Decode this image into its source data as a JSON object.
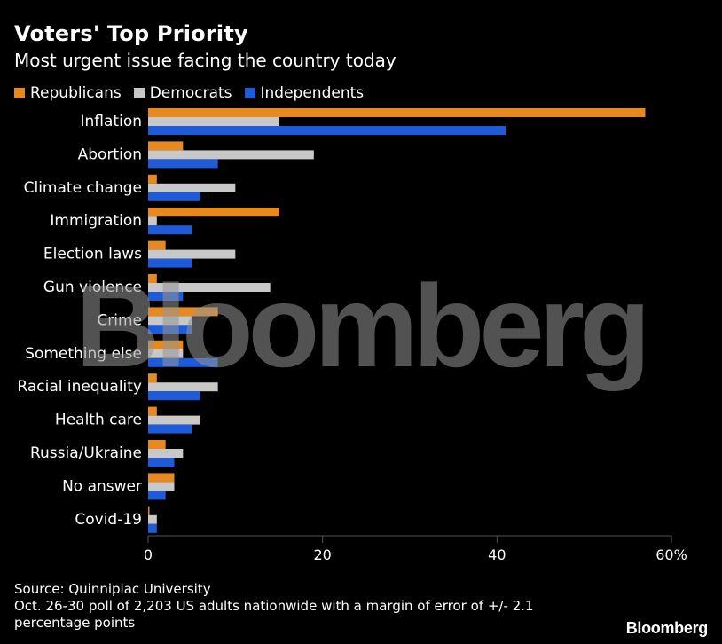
{
  "colors": {
    "background": "#000000",
    "republicans": "#E8891F",
    "democrats": "#C8C8C8",
    "independents": "#1F5BD8",
    "axis_line": "#555555",
    "text": "#FFFFFF"
  },
  "header": {
    "title": "Voters' Top Priority",
    "subtitle": "Most urgent issue facing the country today"
  },
  "chart_data": {
    "type": "bar",
    "orientation": "horizontal",
    "title": "Voters' Top Priority",
    "subtitle": "Most urgent issue facing the country today",
    "categories": [
      "Inflation",
      "Abortion",
      "Climate change",
      "Immigration",
      "Election laws",
      "Gun violence",
      "Crime",
      "Something else",
      "Racial inequality",
      "Health care",
      "Russia/Ukraine",
      "No answer",
      "Covid-19"
    ],
    "series": [
      {
        "name": "Republicans",
        "color": "#E8891F",
        "values": [
          57,
          4,
          1,
          15,
          2,
          1,
          8,
          4,
          1,
          1,
          2,
          3,
          0
        ]
      },
      {
        "name": "Democrats",
        "color": "#C8C8C8",
        "values": [
          15,
          19,
          10,
          1,
          10,
          14,
          5,
          4,
          8,
          6,
          4,
          3,
          1
        ]
      },
      {
        "name": "Independents",
        "color": "#1F5BD8",
        "values": [
          41,
          8,
          6,
          5,
          5,
          4,
          5,
          8,
          6,
          5,
          3,
          2,
          1
        ]
      }
    ],
    "xlim": [
      0,
      60
    ],
    "xticks": [
      0,
      20,
      40,
      60
    ],
    "xtick_labels": [
      "0",
      "20",
      "40",
      "60%"
    ],
    "xlabel": "",
    "ylabel": "",
    "legend_position": "top-left"
  },
  "footer": {
    "source": "Source: Quinnipiac University",
    "note_line1": "Oct. 26-30 poll of 2,203 US adults nationwide with a margin of error of +/- 2.1",
    "note_line2": "percentage points"
  },
  "brand": "Bloomberg",
  "watermark": "Bloomberg"
}
